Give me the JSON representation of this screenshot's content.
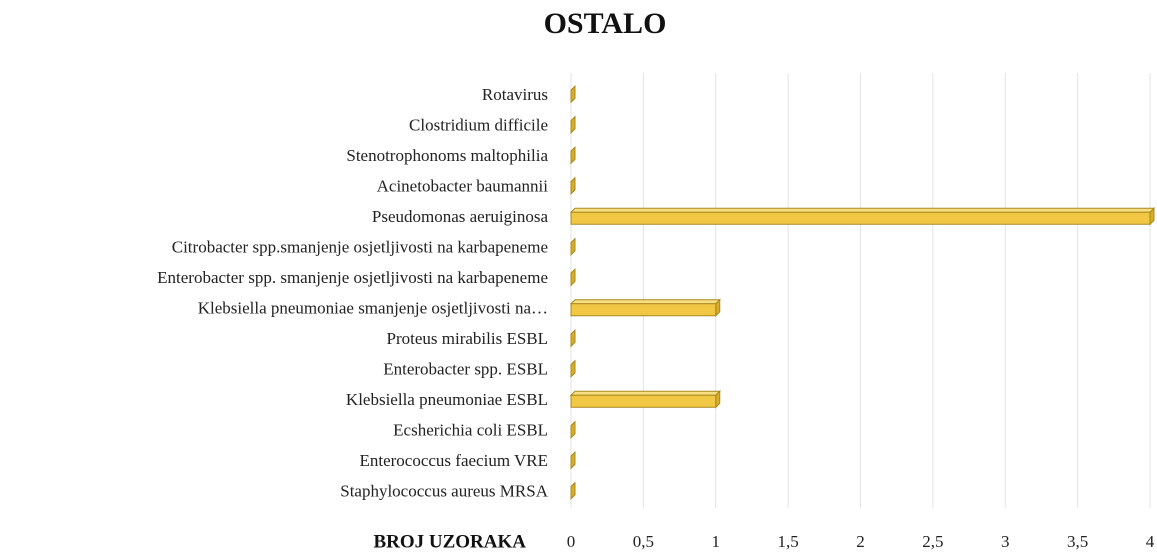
{
  "chart_data": {
    "type": "hbar",
    "title": "OSTALO",
    "x_label": "BROJ UZORAKA",
    "categories": [
      "Staphylococcus aureus MRSA",
      "Enterococcus faecium VRE",
      "Ecsherichia coli ESBL",
      "Klebsiella pneumoniae ESBL",
      "Enterobacter spp. ESBL",
      "Proteus mirabilis ESBL",
      "Klebsiella pneumoniae smanjenje osjetljivosti na…",
      "Enterobacter spp. smanjenje osjetljivosti na karbapeneme",
      "Citrobacter spp.smanjenje osjetljivosti na karbapeneme",
      "Pseudomonas aeruiginosa",
      "Acinetobacter baumannii",
      "Stenotrophonoms maltophilia",
      "Clostridium difficile",
      "Rotavirus"
    ],
    "values": [
      0,
      0,
      0,
      1,
      0,
      0,
      1,
      0,
      0,
      4,
      0,
      0,
      0,
      0
    ],
    "color": "#f2c744",
    "xlim": [
      0,
      4
    ],
    "xticks": [
      0,
      {
        "value": 0.5,
        "label": "0,5"
      },
      1,
      {
        "value": 1.5,
        "label": "1,5"
      },
      2,
      {
        "value": 2.5,
        "label": "2,5"
      },
      3,
      {
        "value": 3.5,
        "label": "3,5"
      },
      4
    ],
    "grid": true
  }
}
